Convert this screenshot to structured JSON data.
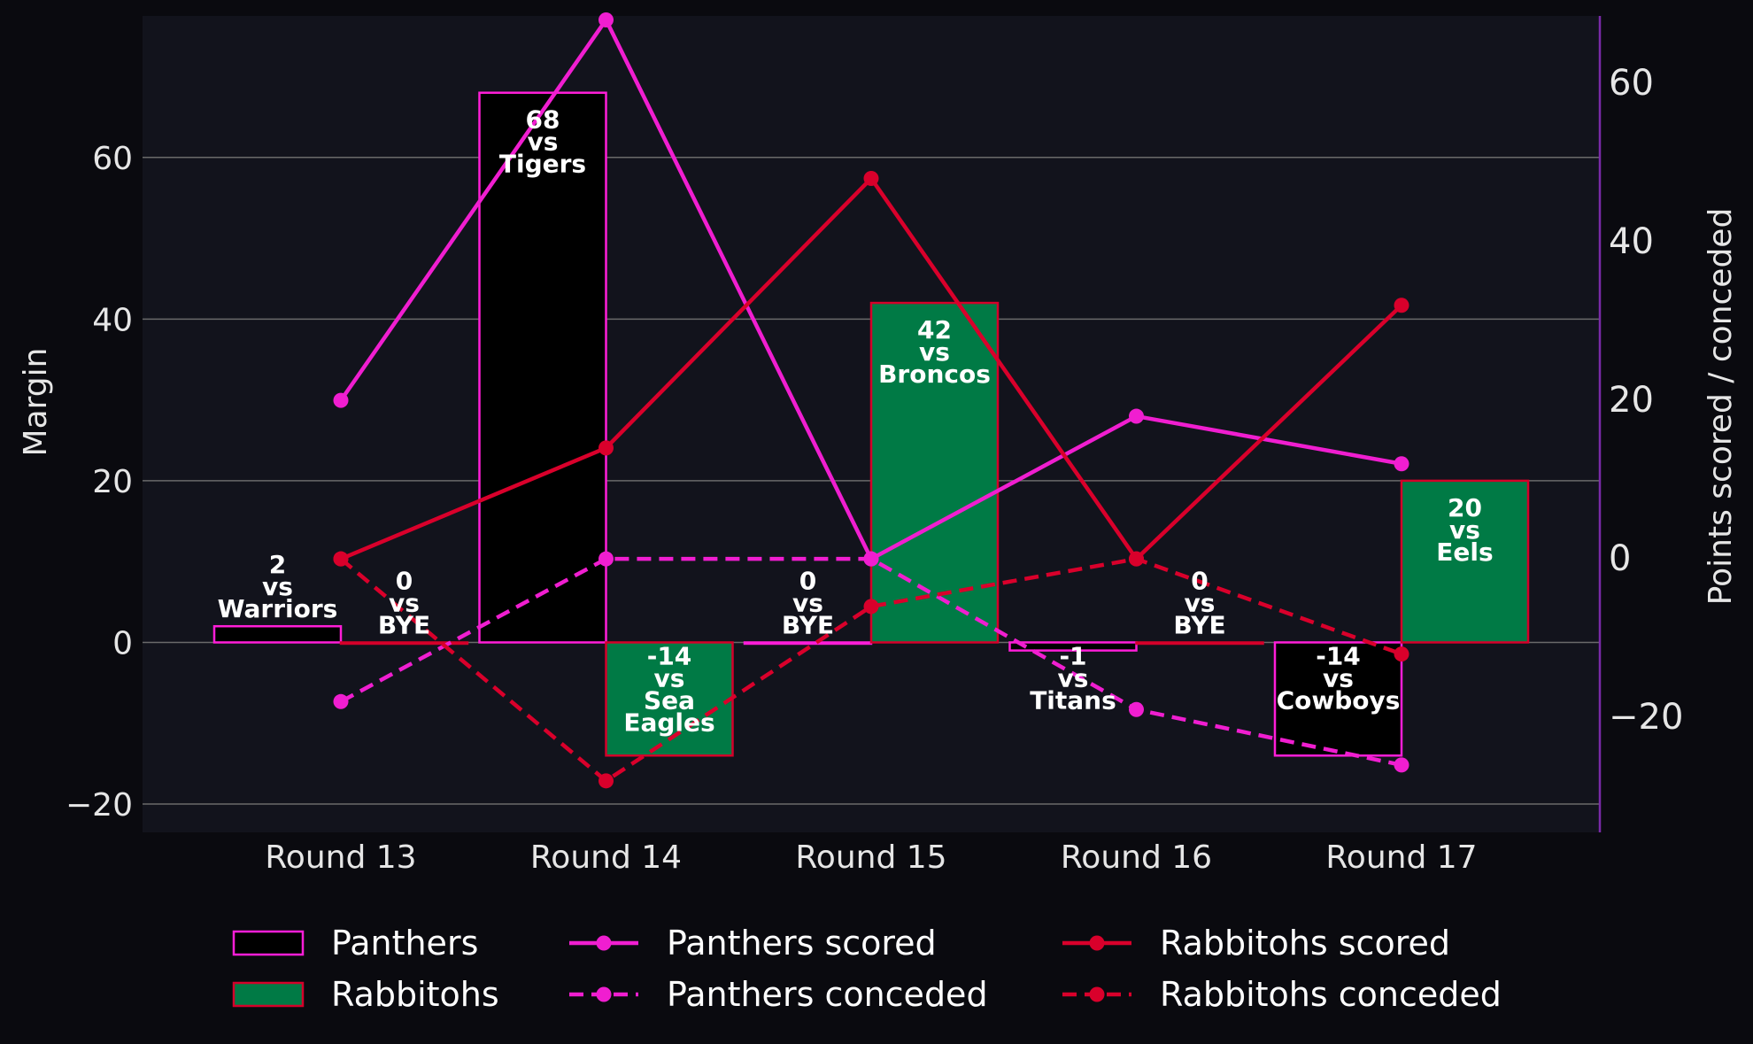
{
  "colors": {
    "figure_bg": "#0a0a0f",
    "plot_bg": "#12131c",
    "grid": "#6a6a6a",
    "text": "#e6e6e6",
    "panthers_fill": "#000000",
    "panthers_edge": "#ff1ed8",
    "rabbitohs_fill": "#007a45",
    "rabbitohs_edge": "#d4002a",
    "panthers_line": "#f01ed0",
    "rabbitohs_line": "#d9002b",
    "right_spine": "#7a2aa8"
  },
  "chart_data": {
    "type": "bar",
    "categories": [
      "Round 13",
      "Round 14",
      "Round 15",
      "Round 16",
      "Round 17"
    ],
    "ylabel": "Margin",
    "ylabel_right": "Points scored / conceded",
    "ylim": [
      -23.5,
      77.5
    ],
    "ylim_right": [
      -34.5,
      68.5
    ],
    "yticks": [
      -20,
      0,
      20,
      40,
      60
    ],
    "yticks_right": [
      -20,
      0,
      20,
      40,
      60
    ],
    "grid": true,
    "legend_position": "bottom",
    "bars": [
      {
        "name": "Panthers",
        "values": [
          2,
          68,
          0,
          -1,
          -14
        ],
        "labels": [
          [
            "2",
            "vs",
            "Warriors"
          ],
          [
            "68",
            "vs",
            "Tigers"
          ],
          [
            "0",
            "vs",
            "BYE"
          ],
          [
            "-1",
            "vs",
            "Titans"
          ],
          [
            "-14",
            "vs",
            "Cowboys"
          ]
        ]
      },
      {
        "name": "Rabbitohs",
        "values": [
          0,
          -14,
          42,
          0,
          20
        ],
        "labels": [
          [
            "0",
            "vs",
            "BYE"
          ],
          [
            "-14",
            "vs",
            "Sea",
            "Eagles"
          ],
          [
            "42",
            "vs",
            "Broncos"
          ],
          [
            "0",
            "vs",
            "BYE"
          ],
          [
            "20",
            "vs",
            "Eels"
          ]
        ]
      }
    ],
    "lines": [
      {
        "name": "Panthers scored",
        "style": "solid",
        "team": "panthers",
        "values": [
          20,
          68,
          0,
          18,
          12
        ]
      },
      {
        "name": "Panthers conceded",
        "style": "dashed",
        "team": "panthers",
        "values": [
          -18,
          0,
          0,
          -19,
          -26
        ]
      },
      {
        "name": "Rabbitohs scored",
        "style": "solid",
        "team": "rabbitohs",
        "values": [
          0,
          14,
          48,
          0,
          32
        ]
      },
      {
        "name": "Rabbitohs conceded",
        "style": "dashed",
        "team": "rabbitohs",
        "values": [
          0,
          -28,
          -6,
          0,
          -12
        ]
      }
    ]
  },
  "legend": {
    "items": [
      {
        "label": "Panthers",
        "kind": "bar",
        "team": "panthers"
      },
      {
        "label": "Rabbitohs",
        "kind": "bar",
        "team": "rabbitohs"
      },
      {
        "label": "Panthers scored",
        "kind": "line",
        "team": "panthers",
        "style": "solid"
      },
      {
        "label": "Panthers conceded",
        "kind": "line",
        "team": "panthers",
        "style": "dashed"
      },
      {
        "label": "Rabbitohs scored",
        "kind": "line",
        "team": "rabbitohs",
        "style": "solid"
      },
      {
        "label": "Rabbitohs conceded",
        "kind": "line",
        "team": "rabbitohs",
        "style": "dashed"
      }
    ]
  }
}
